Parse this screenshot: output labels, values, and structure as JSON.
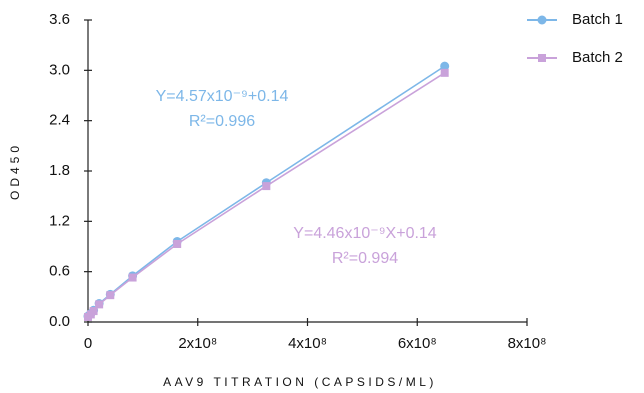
{
  "chart_data": {
    "type": "line",
    "xlabel": "AAV9 TITRATION (CAPSIDS/ML)",
    "ylabel": "OD450",
    "xlim": [
      0,
      800000000
    ],
    "xticks": [
      0,
      {
        "value": 200000000,
        "label": "2x10⁸"
      },
      {
        "value": 400000000,
        "label": "4x10⁸"
      },
      {
        "value": 600000000,
        "label": "6x10⁸"
      },
      {
        "value": 800000000,
        "label": "8x10⁸"
      }
    ],
    "ylim": [
      0,
      3.6
    ],
    "yticks": [
      {
        "value": 0,
        "label": "0.0"
      },
      0.6,
      1.2,
      1.8,
      2.4,
      {
        "value": 3,
        "label": "3.0"
      },
      3.6
    ],
    "legend": "top-right",
    "series": [
      {
        "name": "Batch 1",
        "color": "#7db7e8",
        "marker": "circle",
        "x": [
          0,
          5100000,
          10200000,
          20300000,
          40600000,
          81250000,
          162500000,
          325000000,
          650000000
        ],
        "values": [
          0.07,
          0.1,
          0.14,
          0.22,
          0.33,
          0.55,
          0.96,
          1.66,
          3.05
        ]
      },
      {
        "name": "Batch 2",
        "color": "#c9a2da",
        "marker": "square",
        "x": [
          0,
          5100000,
          10200000,
          20300000,
          40600000,
          81250000,
          162500000,
          325000000,
          650000000
        ],
        "values": [
          0.06,
          0.09,
          0.13,
          0.21,
          0.32,
          0.53,
          0.93,
          1.62,
          2.97
        ]
      }
    ],
    "annotations": [
      {
        "text": "Y=4.57x10⁻⁹+0.14",
        "color": "#7db7e8"
      },
      {
        "text": "R²=0.996",
        "color": "#7db7e8"
      },
      {
        "text": "Y=4.46x10⁻⁹X+0.14",
        "color": "#c9a2da"
      },
      {
        "text": "R²=0.994",
        "color": "#c9a2da"
      }
    ]
  }
}
